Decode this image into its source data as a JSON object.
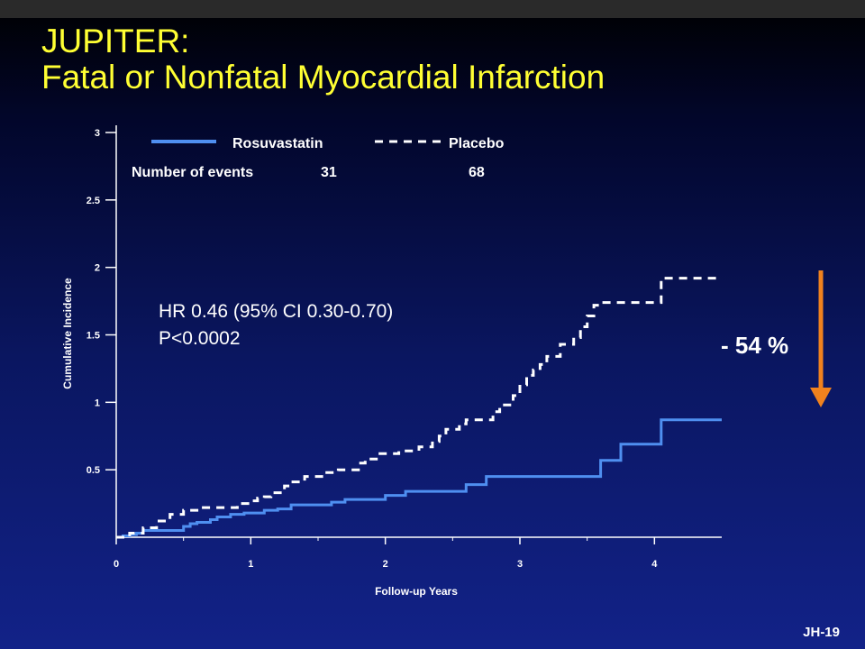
{
  "slide": {
    "title_line1": "JUPITER:",
    "title_line2": "Fatal or Nonfatal Myocardial Infarction",
    "slide_id": "JH-19",
    "colors": {
      "title": "#ffff33",
      "rosuvastatin": "#4f8ff0",
      "placebo": "#ffffff",
      "arrow": "#f0821e"
    }
  },
  "chart_data": {
    "type": "line",
    "xlabel": "Follow-up Years",
    "ylabel": "Cumulative Incidence",
    "xlim": [
      0,
      4.5
    ],
    "ylim": [
      0,
      3
    ],
    "x_ticks": [
      0,
      1,
      2,
      3,
      4
    ],
    "y_ticks": [
      0.5,
      1,
      1.5,
      2,
      2.5,
      3
    ],
    "y_tick_labels": [
      "0.5",
      "1",
      "1.5",
      "2",
      "2.5",
      "3"
    ],
    "x_tick_labels": [
      "0",
      "1",
      "2",
      "3",
      "4"
    ],
    "legend_placement": "top",
    "events_label": "Number of events",
    "series": [
      {
        "name": "Rosuvastatin",
        "style": "solid",
        "events": "31",
        "points": [
          [
            0,
            0
          ],
          [
            0.05,
            0.01
          ],
          [
            0.1,
            0.02
          ],
          [
            0.15,
            0.03
          ],
          [
            0.2,
            0.05
          ],
          [
            0.45,
            0.05
          ],
          [
            0.5,
            0.08
          ],
          [
            0.55,
            0.1
          ],
          [
            0.6,
            0.11
          ],
          [
            0.7,
            0.13
          ],
          [
            0.75,
            0.15
          ],
          [
            0.85,
            0.17
          ],
          [
            0.95,
            0.18
          ],
          [
            1.05,
            0.18
          ],
          [
            1.1,
            0.2
          ],
          [
            1.2,
            0.21
          ],
          [
            1.3,
            0.24
          ],
          [
            1.5,
            0.24
          ],
          [
            1.6,
            0.26
          ],
          [
            1.7,
            0.28
          ],
          [
            1.95,
            0.28
          ],
          [
            2.0,
            0.31
          ],
          [
            2.1,
            0.31
          ],
          [
            2.15,
            0.34
          ],
          [
            2.55,
            0.34
          ],
          [
            2.6,
            0.39
          ],
          [
            2.75,
            0.39
          ],
          [
            2.75,
            0.45
          ],
          [
            3.6,
            0.45
          ],
          [
            3.6,
            0.57
          ],
          [
            3.75,
            0.57
          ],
          [
            3.75,
            0.69
          ],
          [
            4.0,
            0.69
          ],
          [
            4.05,
            0.87
          ],
          [
            4.5,
            0.87
          ]
        ]
      },
      {
        "name": "Placebo",
        "style": "dashed",
        "events": "68",
        "points": [
          [
            0,
            0
          ],
          [
            0.1,
            0.03
          ],
          [
            0.2,
            0.07
          ],
          [
            0.3,
            0.12
          ],
          [
            0.4,
            0.17
          ],
          [
            0.5,
            0.2
          ],
          [
            0.6,
            0.22
          ],
          [
            0.85,
            0.22
          ],
          [
            0.9,
            0.25
          ],
          [
            1.0,
            0.27
          ],
          [
            1.05,
            0.29
          ],
          [
            1.1,
            0.3
          ],
          [
            1.15,
            0.33
          ],
          [
            1.25,
            0.38
          ],
          [
            1.3,
            0.41
          ],
          [
            1.4,
            0.45
          ],
          [
            1.55,
            0.48
          ],
          [
            1.65,
            0.5
          ],
          [
            1.75,
            0.5
          ],
          [
            1.8,
            0.55
          ],
          [
            1.85,
            0.58
          ],
          [
            1.95,
            0.62
          ],
          [
            2.05,
            0.62
          ],
          [
            2.1,
            0.64
          ],
          [
            2.25,
            0.67
          ],
          [
            2.35,
            0.71
          ],
          [
            2.4,
            0.75
          ],
          [
            2.45,
            0.8
          ],
          [
            2.55,
            0.84
          ],
          [
            2.6,
            0.87
          ],
          [
            2.75,
            0.87
          ],
          [
            2.8,
            0.93
          ],
          [
            2.85,
            0.98
          ],
          [
            2.95,
            1.05
          ],
          [
            3.0,
            1.13
          ],
          [
            3.05,
            1.2
          ],
          [
            3.1,
            1.24
          ],
          [
            3.15,
            1.28
          ],
          [
            3.2,
            1.34
          ],
          [
            3.3,
            1.43
          ],
          [
            3.4,
            1.48
          ],
          [
            3.45,
            1.56
          ],
          [
            3.5,
            1.64
          ],
          [
            3.55,
            1.72
          ],
          [
            3.6,
            1.74
          ],
          [
            4.05,
            1.74
          ],
          [
            4.05,
            1.92
          ],
          [
            4.5,
            1.92
          ]
        ]
      }
    ],
    "annotations": {
      "hr_line1": "HR 0.46 (95% CI 0.30-0.70)",
      "hr_line2": "P<0.0002",
      "reduction": "- 54 %"
    }
  }
}
